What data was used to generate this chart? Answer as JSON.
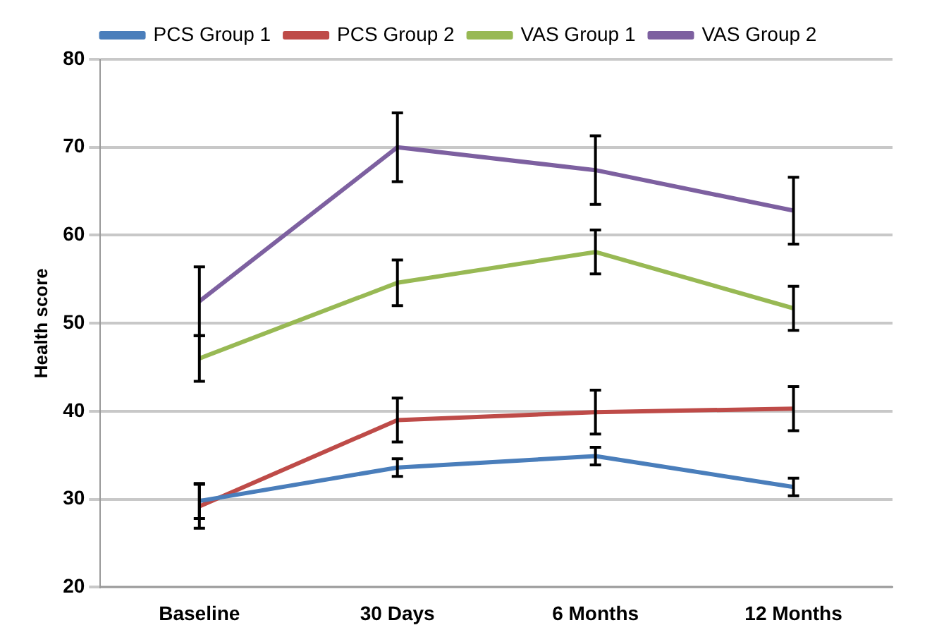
{
  "chart_data": {
    "type": "line",
    "ylabel": "Health score",
    "categories": [
      "Baseline",
      "30 Days",
      "6 Months",
      "12 Months"
    ],
    "series": [
      {
        "name": "PCS Group 1",
        "color": "#4a7ebb",
        "values": [
          29.8,
          33.6,
          34.9,
          31.4
        ],
        "errors": [
          2,
          1,
          1,
          1
        ]
      },
      {
        "name": "PCS Group 2",
        "color": "#be4b48",
        "values": [
          29.2,
          39,
          39.9,
          40.3
        ],
        "errors": [
          2.5,
          2.5,
          2.5,
          2.5
        ]
      },
      {
        "name": "VAS Group 1",
        "color": "#98b954",
        "values": [
          46,
          54.6,
          58.1,
          51.7
        ],
        "errors": [
          2.6,
          2.6,
          2.5,
          2.5
        ]
      },
      {
        "name": "VAS Group 2",
        "color": "#7d60a0",
        "values": [
          52.5,
          70,
          67.4,
          62.8
        ],
        "errors": [
          3.9,
          3.9,
          3.9,
          3.8
        ]
      }
    ],
    "ylim": [
      20,
      80
    ],
    "yticks": [
      20,
      30,
      40,
      50,
      60,
      70,
      80
    ],
    "grid": "y",
    "legend": "top",
    "line_style": "solid"
  }
}
